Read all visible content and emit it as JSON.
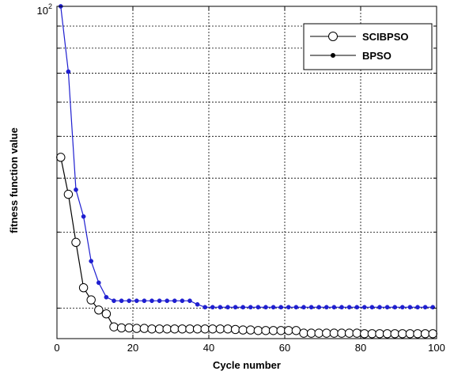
{
  "chart_data": {
    "type": "line",
    "xlabel": "Cycle number",
    "ylabel": "fitness function value",
    "xlim": [
      0,
      100
    ],
    "ylim": [
      17,
      100
    ],
    "yscale": "log",
    "grid": true,
    "legend_position": "top-right",
    "x_ticks": [
      0,
      20,
      40,
      60,
      80,
      100
    ],
    "x_tick_labels": [
      "0",
      "20",
      "40",
      "60",
      "80",
      "100"
    ],
    "y_tick_labels": [
      {
        "value": 100,
        "base": "10",
        "exp": "2"
      }
    ],
    "y_minor_gridlines": [
      20,
      30,
      40,
      50,
      60,
      70,
      80,
      90
    ],
    "series": [
      {
        "name": "SCIBPSO",
        "color": "#000000",
        "marker": "open-circle",
        "x": [
          1,
          3,
          5,
          7,
          9,
          11,
          13,
          15,
          17,
          19,
          21,
          23,
          25,
          27,
          29,
          31,
          33,
          35,
          37,
          39,
          41,
          43,
          45,
          47,
          49,
          51,
          53,
          55,
          57,
          59,
          61,
          63,
          65,
          67,
          69,
          71,
          73,
          75,
          77,
          79,
          81,
          83,
          85,
          87,
          89,
          91,
          93,
          95,
          97,
          99
        ],
        "y": [
          44.7,
          36.7,
          28.4,
          22.3,
          20.9,
          19.8,
          19.4,
          18.1,
          18.0,
          18.0,
          17.95,
          17.95,
          17.9,
          17.9,
          17.9,
          17.9,
          17.9,
          17.9,
          17.9,
          17.9,
          17.9,
          17.9,
          17.9,
          17.85,
          17.8,
          17.8,
          17.75,
          17.75,
          17.75,
          17.75,
          17.75,
          17.75,
          17.5,
          17.5,
          17.5,
          17.5,
          17.5,
          17.5,
          17.5,
          17.5,
          17.45,
          17.45,
          17.45,
          17.45,
          17.45,
          17.45,
          17.45,
          17.45,
          17.45,
          17.45
        ]
      },
      {
        "name": "BPSO",
        "color": "#1f1fd0",
        "marker": "filled-dot",
        "x": [
          1,
          3,
          5,
          7,
          9,
          11,
          13,
          15,
          17,
          19,
          21,
          23,
          25,
          27,
          29,
          31,
          33,
          35,
          37,
          39,
          41,
          43,
          45,
          47,
          49,
          51,
          53,
          55,
          57,
          59,
          61,
          63,
          65,
          67,
          69,
          71,
          73,
          75,
          77,
          79,
          81,
          83,
          85,
          87,
          89,
          91,
          93,
          95,
          97,
          99
        ],
        "y": [
          100,
          70.6,
          37.6,
          32.6,
          25.7,
          22.9,
          21.2,
          20.8,
          20.8,
          20.8,
          20.8,
          20.8,
          20.8,
          20.8,
          20.8,
          20.8,
          20.8,
          20.8,
          20.4,
          20.1,
          20.1,
          20.1,
          20.1,
          20.1,
          20.1,
          20.1,
          20.1,
          20.1,
          20.1,
          20.1,
          20.1,
          20.1,
          20.1,
          20.1,
          20.1,
          20.1,
          20.1,
          20.1,
          20.1,
          20.1,
          20.1,
          20.1,
          20.1,
          20.1,
          20.1,
          20.1,
          20.1,
          20.1,
          20.1,
          20.1
        ]
      }
    ]
  }
}
